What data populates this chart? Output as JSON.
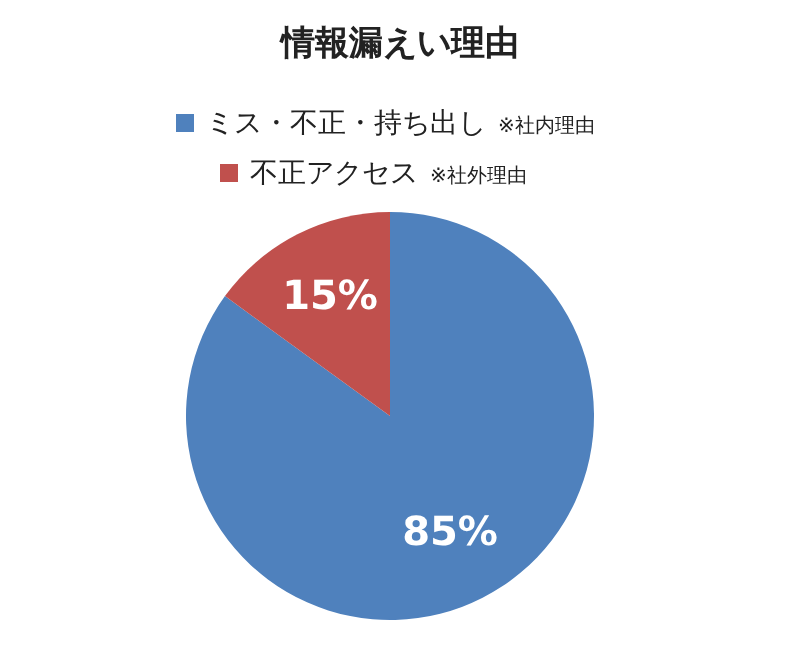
{
  "chart_data": {
    "type": "pie",
    "title": "情報漏えい理由",
    "categories": [
      "ミス・不正・持ち出し",
      "不正アクセス"
    ],
    "values": [
      85,
      15
    ],
    "colors": [
      "#4f81bd",
      "#c0504d"
    ],
    "value_labels": [
      "85%",
      "15%"
    ],
    "annotations": [
      "※社内理由",
      "※社外理由"
    ],
    "legend": "top"
  }
}
